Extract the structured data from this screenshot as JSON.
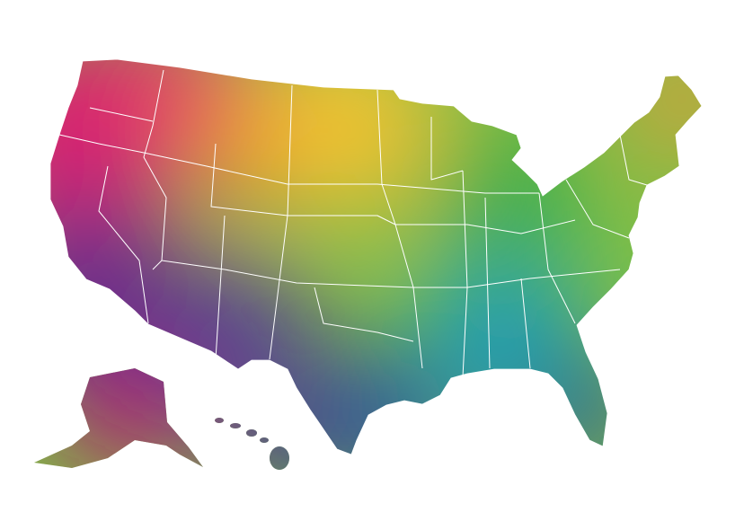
{
  "map": {
    "palette": {
      "west": "#d81b72",
      "northwest": "#e3306a",
      "north_central": "#f2c230",
      "north_west_central": "#f08a2c",
      "northeast": "#e89a3a",
      "center": "#8cc43f",
      "east": "#3fae4a",
      "southeast": "#1f9fb8",
      "south": "#2a4f9e",
      "southwest": "#6a2b8c",
      "border": "#ffffff",
      "background": "#ffffff"
    }
  }
}
